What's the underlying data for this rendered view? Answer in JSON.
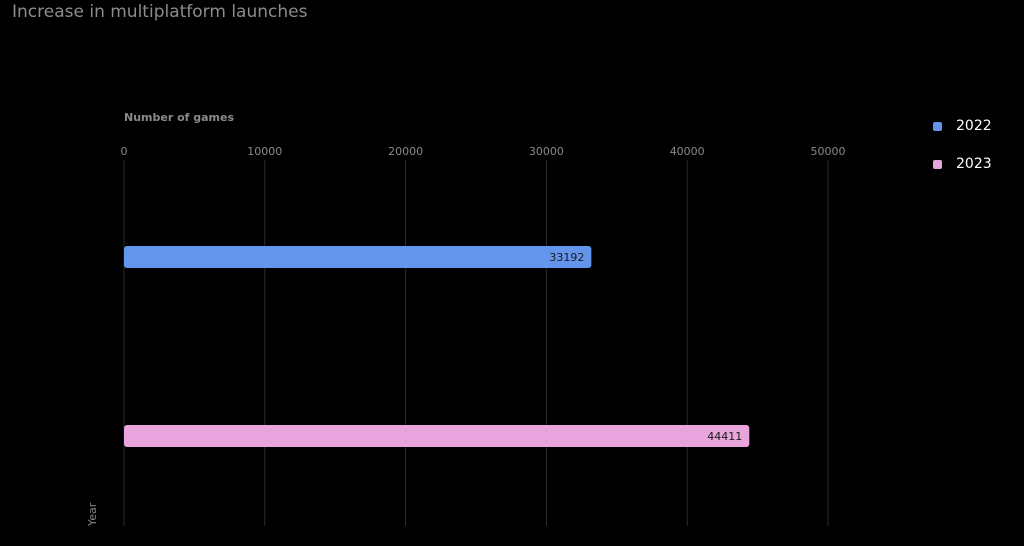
{
  "title": "Increase in multiplatform launches",
  "chart_data": {
    "type": "bar",
    "orientation": "horizontal",
    "title": "Increase in multiplatform launches",
    "xlabel": "Number of games",
    "ylabel": "Year",
    "categories": [
      "2022",
      "2023"
    ],
    "values": [
      33192,
      44411
    ],
    "colors": [
      "#6495ed",
      "#e8a4dc"
    ],
    "xlim": [
      0,
      50000
    ],
    "xticks": [
      0,
      10000,
      20000,
      30000,
      40000,
      50000
    ],
    "tick_labels": [
      "0",
      "10000",
      "20000",
      "30000",
      "40000",
      "50000"
    ],
    "data_labels": [
      "33192",
      "44411"
    ],
    "grid": true,
    "legend": "top-right",
    "legend_entries": [
      "2022",
      "2023"
    ]
  }
}
